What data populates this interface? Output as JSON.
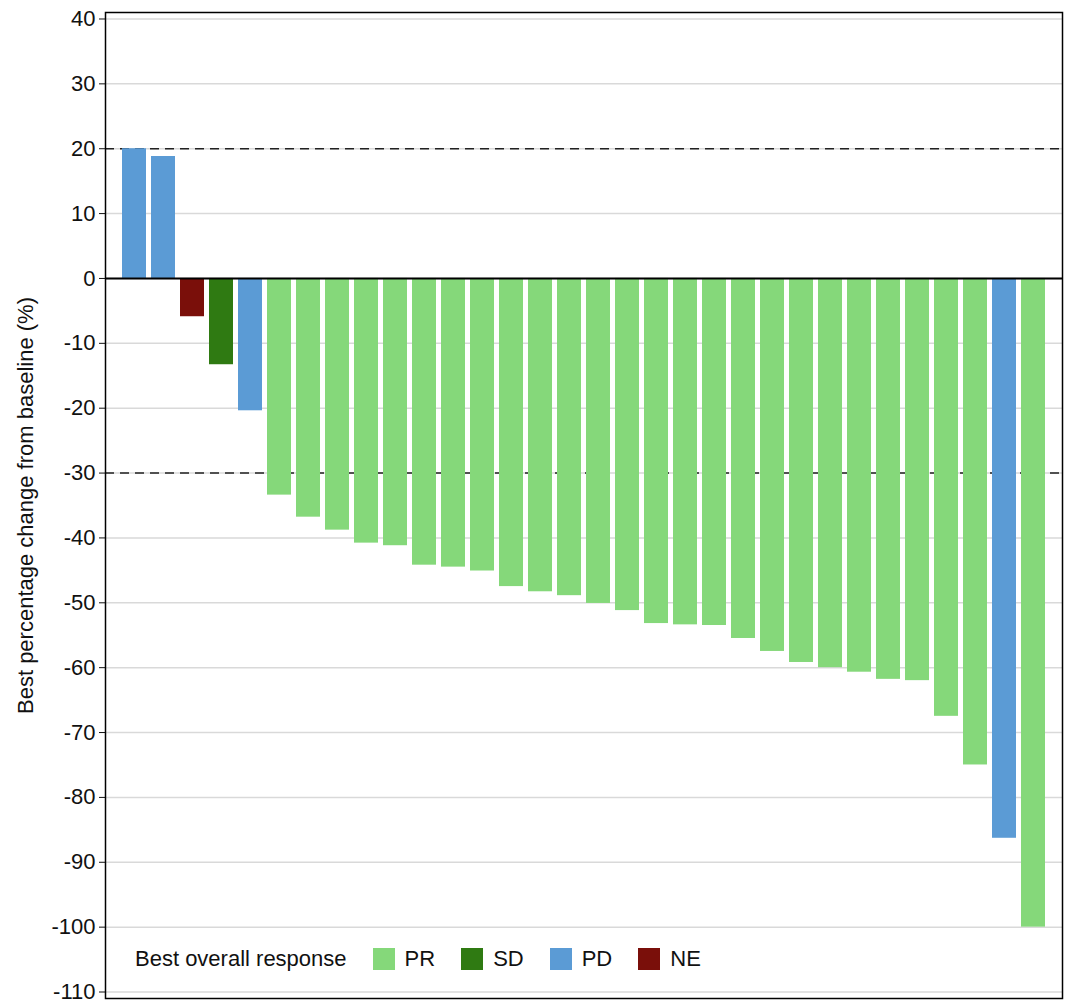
{
  "chart_data": {
    "type": "bar",
    "y_label": "Best percentage change from baseline (%)",
    "categories": [
      null,
      null,
      null,
      null,
      null,
      null,
      null,
      null,
      null,
      null,
      null,
      null,
      null,
      null,
      null,
      null,
      null,
      null,
      null,
      null,
      null,
      null,
      null,
      null,
      null,
      null,
      null,
      null,
      null,
      null,
      null,
      null
    ],
    "series": [
      {
        "name": "PR",
        "color": "#85d87a",
        "values": [
          null,
          null,
          null,
          null,
          null,
          -33.4,
          -36.8,
          -38.8,
          -40.8,
          -41.2,
          -44.2,
          -44.5,
          -45.1,
          -47.5,
          -48.3,
          -48.9,
          -50.1,
          -51.2,
          -53.2,
          -53.4,
          -53.5,
          -55.5,
          -57.5,
          -59.2,
          -60.0,
          -60.7,
          -61.8,
          -62.0,
          -67.5,
          -75.0,
          null,
          -100
        ]
      },
      {
        "name": "SD",
        "color": "#2f7a12",
        "values": [
          null,
          null,
          null,
          -13.3,
          null,
          null,
          null,
          null,
          null,
          null,
          null,
          null,
          null,
          null,
          null,
          null,
          null,
          null,
          null,
          null,
          null,
          null,
          null,
          null,
          null,
          null,
          null,
          null,
          null,
          null,
          null,
          null
        ]
      },
      {
        "name": "PD",
        "color": "#5b9bd5",
        "values": [
          20,
          18.8,
          null,
          null,
          -20.4,
          null,
          null,
          null,
          null,
          null,
          null,
          null,
          null,
          null,
          null,
          null,
          null,
          null,
          null,
          null,
          null,
          null,
          null,
          null,
          null,
          null,
          null,
          null,
          null,
          null,
          -86.3,
          null
        ]
      },
      {
        "name": "NE",
        "color": "#7a0f0a",
        "values": [
          null,
          null,
          -5.9,
          null,
          null,
          null,
          null,
          null,
          null,
          null,
          null,
          null,
          null,
          null,
          null,
          null,
          null,
          null,
          null,
          null,
          null,
          null,
          null,
          null,
          null,
          null,
          null,
          null,
          null,
          null,
          null,
          null
        ]
      }
    ],
    "baseline": 0,
    "reference_lines": [
      20,
      -30
    ],
    "legend_title": "Best overall response",
    "legend": "lower left",
    "ylim": [
      -111,
      41
    ],
    "yticks": [
      -110,
      -100,
      -90,
      -80,
      -70,
      -60,
      -50,
      -40,
      -30,
      -20,
      -10,
      0,
      10,
      20,
      30,
      40
    ],
    "grid": true,
    "tick_labels": "y"
  }
}
